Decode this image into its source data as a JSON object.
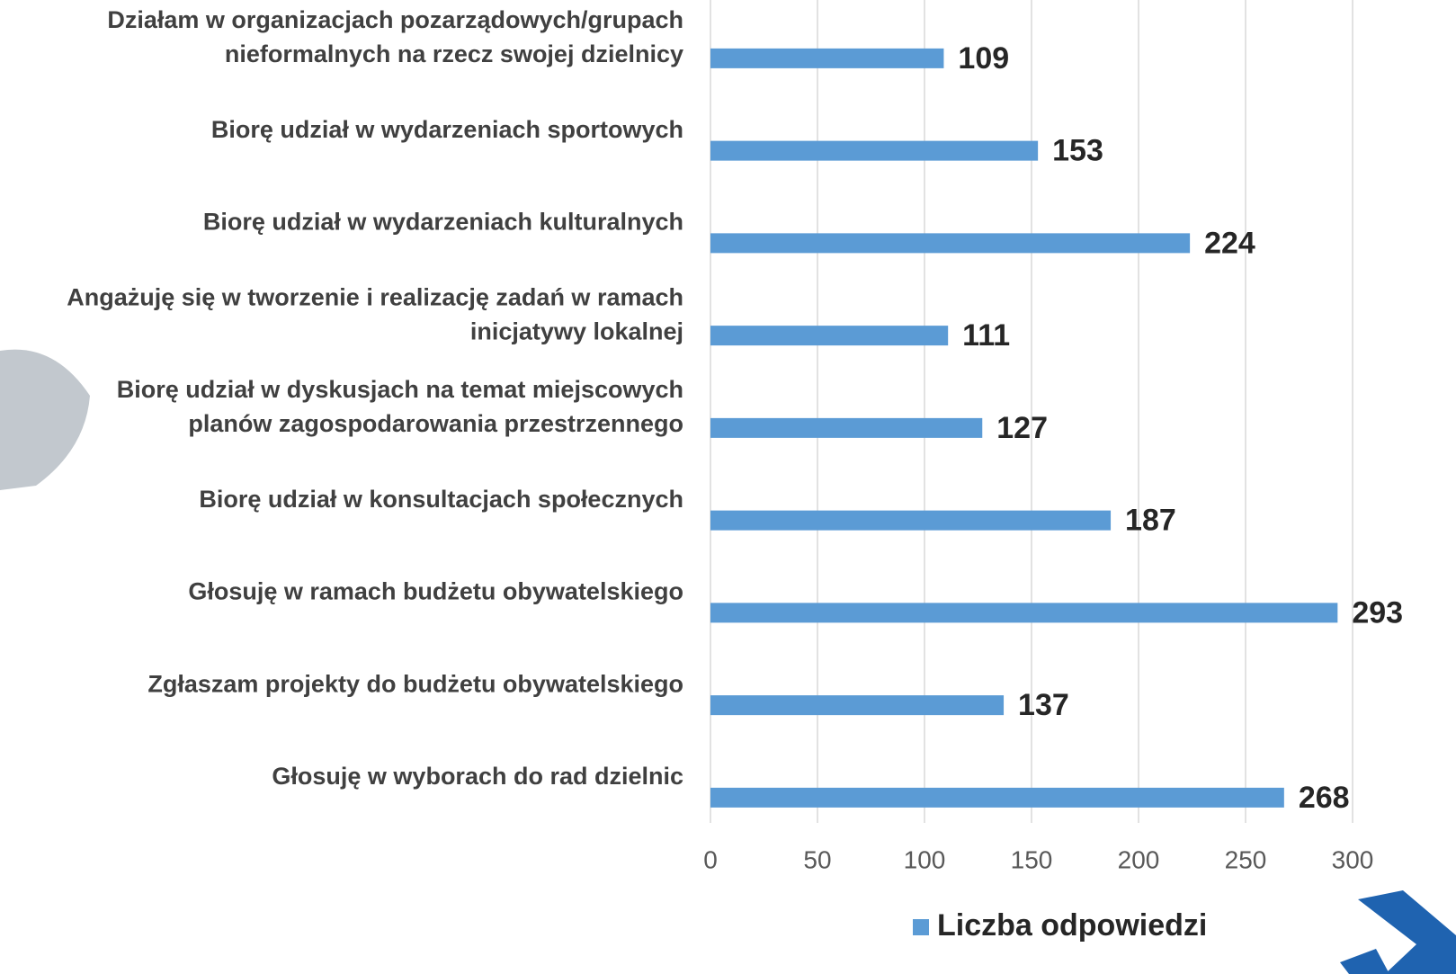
{
  "chart_data": {
    "type": "barh",
    "categories": [
      [
        "Działam w organizacjach pozarządowych/grupach",
        "nieformalnych na rzecz swojej dzielnicy"
      ],
      [
        "Biorę udział w wydarzeniach sportowych"
      ],
      [
        "Biorę udział w wydarzeniach kulturalnych"
      ],
      [
        "Angażuję się w tworzenie i realizację zadań w ramach",
        "inicjatywy lokalnej"
      ],
      [
        "Biorę udział w dyskusjach na temat miejscowych",
        "planów zagospodarowania przestrzennego"
      ],
      [
        "Biorę udział w konsultacjach społecznych"
      ],
      [
        "Głosuję w ramach budżetu obywatelskiego"
      ],
      [
        "Zgłaszam projekty do budżetu obywatelskiego"
      ],
      [
        "Głosuję w wyborach do rad dzielnic"
      ]
    ],
    "series": [
      {
        "name": "Liczba odpowiedzi",
        "color": "#5b9bd5",
        "values": [
          109,
          153,
          224,
          111,
          127,
          187,
          293,
          137,
          268
        ]
      }
    ],
    "xlim": [
      0,
      300
    ],
    "xticks": [
      0,
      50,
      100,
      150,
      200,
      250,
      300
    ],
    "grid": true
  }
}
